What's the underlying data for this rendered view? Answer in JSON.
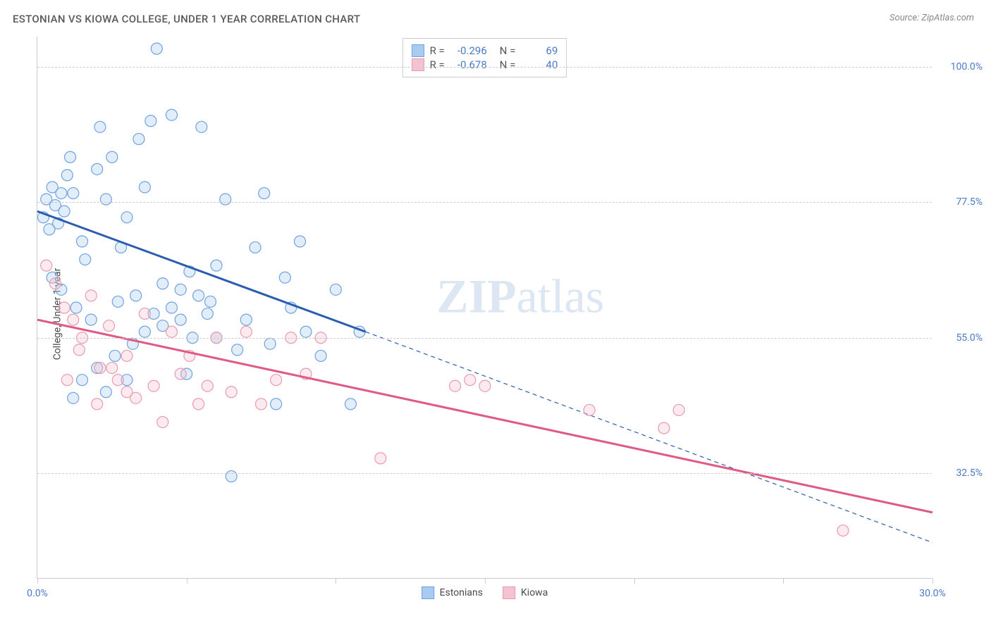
{
  "chart": {
    "type": "scatter",
    "title": "ESTONIAN VS KIOWA COLLEGE, UNDER 1 YEAR CORRELATION CHART",
    "source": "Source: ZipAtlas.com",
    "y_axis_label": "College, Under 1 year",
    "watermark": {
      "bold": "ZIP",
      "light": "atlas"
    },
    "background_color": "#ffffff",
    "grid_color": "#cccccc",
    "grid_dash": "4,4",
    "xlim": [
      0,
      30
    ],
    "ylim": [
      15,
      105
    ],
    "x_ticks": [
      0,
      5,
      10,
      15,
      20,
      25,
      30
    ],
    "x_tick_labels": {
      "0": "0.0%",
      "30": "30.0%"
    },
    "y_ticks": [
      32.5,
      55.0,
      77.5,
      100.0
    ],
    "y_tick_labels": [
      "32.5%",
      "55.0%",
      "77.5%",
      "100.0%"
    ],
    "marker_radius": 8,
    "marker_fill_opacity": 0.35,
    "marker_stroke_width": 1.2,
    "line_width_solid": 3,
    "line_width_dashed": 1.2,
    "series": [
      {
        "name": "Estonians",
        "color_stroke": "#6fa3e0",
        "color_fill": "#a9cbef",
        "trend_color": "#2a5db0",
        "R": "-0.296",
        "N": "69",
        "trend_solid": {
          "x1": 0,
          "y1": 76,
          "x2": 11,
          "y2": 56
        },
        "trend_dashed": {
          "x1": 11,
          "y1": 56,
          "x2": 30,
          "y2": 21
        },
        "points": [
          [
            0.2,
            75
          ],
          [
            0.3,
            78
          ],
          [
            0.4,
            73
          ],
          [
            0.5,
            80
          ],
          [
            0.6,
            77
          ],
          [
            0.7,
            74
          ],
          [
            0.8,
            79
          ],
          [
            0.9,
            76
          ],
          [
            1.0,
            82
          ],
          [
            1.1,
            85
          ],
          [
            1.2,
            79
          ],
          [
            0.5,
            65
          ],
          [
            0.8,
            63
          ],
          [
            1.3,
            60
          ],
          [
            1.5,
            71
          ],
          [
            1.6,
            68
          ],
          [
            1.8,
            58
          ],
          [
            2.0,
            83
          ],
          [
            2.1,
            90
          ],
          [
            2.3,
            78
          ],
          [
            2.5,
            85
          ],
          [
            2.7,
            61
          ],
          [
            2.8,
            70
          ],
          [
            3.0,
            75
          ],
          [
            3.2,
            54
          ],
          [
            3.4,
            88
          ],
          [
            3.6,
            80
          ],
          [
            3.8,
            91
          ],
          [
            4.0,
            103
          ],
          [
            4.2,
            57
          ],
          [
            4.5,
            92
          ],
          [
            4.8,
            63
          ],
          [
            5.0,
            49
          ],
          [
            5.2,
            55
          ],
          [
            5.5,
            90
          ],
          [
            5.8,
            61
          ],
          [
            6.0,
            67
          ],
          [
            6.3,
            78
          ],
          [
            6.5,
            32
          ],
          [
            6.7,
            53
          ],
          [
            7.0,
            58
          ],
          [
            7.3,
            70
          ],
          [
            7.6,
            79
          ],
          [
            7.8,
            54
          ],
          [
            8.0,
            44
          ],
          [
            8.3,
            65
          ],
          [
            8.5,
            60
          ],
          [
            8.8,
            71
          ],
          [
            9.0,
            56
          ],
          [
            9.5,
            52
          ],
          [
            10.0,
            63
          ],
          [
            10.5,
            44
          ],
          [
            10.8,
            56
          ],
          [
            1.2,
            45
          ],
          [
            1.5,
            48
          ],
          [
            2.0,
            50
          ],
          [
            2.3,
            46
          ],
          [
            2.6,
            52
          ],
          [
            3.0,
            48
          ],
          [
            3.3,
            62
          ],
          [
            3.6,
            56
          ],
          [
            3.9,
            59
          ],
          [
            4.2,
            64
          ],
          [
            4.5,
            60
          ],
          [
            4.8,
            58
          ],
          [
            5.1,
            66
          ],
          [
            5.4,
            62
          ],
          [
            5.7,
            59
          ],
          [
            6.0,
            55
          ]
        ]
      },
      {
        "name": "Kiowa",
        "color_stroke": "#e89bb0",
        "color_fill": "#f3c4d0",
        "trend_color": "#e05a87",
        "R": "-0.678",
        "N": "40",
        "trend_solid": {
          "x1": 0,
          "y1": 58,
          "x2": 30,
          "y2": 26
        },
        "trend_dashed": null,
        "points": [
          [
            0.3,
            67
          ],
          [
            0.6,
            64
          ],
          [
            0.9,
            60
          ],
          [
            1.2,
            58
          ],
          [
            1.5,
            55
          ],
          [
            1.8,
            62
          ],
          [
            2.1,
            50
          ],
          [
            2.4,
            57
          ],
          [
            2.7,
            48
          ],
          [
            3.0,
            52
          ],
          [
            3.3,
            45
          ],
          [
            3.6,
            59
          ],
          [
            3.9,
            47
          ],
          [
            4.2,
            41
          ],
          [
            4.5,
            56
          ],
          [
            4.8,
            49
          ],
          [
            5.1,
            52
          ],
          [
            5.4,
            44
          ],
          [
            5.7,
            47
          ],
          [
            6.0,
            55
          ],
          [
            6.5,
            46
          ],
          [
            7.0,
            56
          ],
          [
            7.5,
            44
          ],
          [
            8.0,
            48
          ],
          [
            8.5,
            55
          ],
          [
            9.0,
            49
          ],
          [
            9.5,
            55
          ],
          [
            11.5,
            35
          ],
          [
            14.0,
            47
          ],
          [
            14.5,
            48
          ],
          [
            15.0,
            47
          ],
          [
            18.5,
            43
          ],
          [
            21.0,
            40
          ],
          [
            21.5,
            43
          ],
          [
            27.0,
            23
          ],
          [
            1.0,
            48
          ],
          [
            1.4,
            53
          ],
          [
            2.0,
            44
          ],
          [
            2.5,
            50
          ],
          [
            3.0,
            46
          ]
        ]
      }
    ],
    "legend_stats_labels": {
      "R": "R =",
      "N": "N ="
    },
    "legend_bottom_labels": [
      "Estonians",
      "Kiowa"
    ],
    "title_fontsize": 15,
    "label_fontsize": 14,
    "tick_fontsize": 14,
    "tick_color": "#4a7ac7",
    "text_color": "#4a4a4a"
  }
}
